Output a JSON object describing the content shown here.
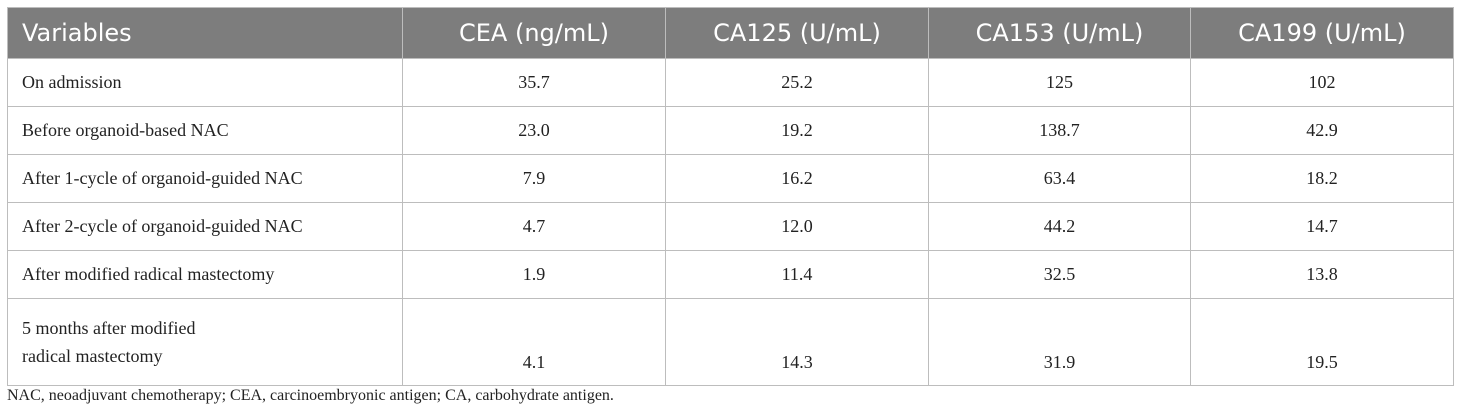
{
  "table": {
    "headers": [
      "Variables",
      "CEA (ng/mL)",
      "CA125 (U/mL)",
      "CA153 (U/mL)",
      "CA199 (U/mL)"
    ],
    "rows": [
      {
        "label": "On admission",
        "cea": "35.7",
        "ca125": "25.2",
        "ca153": "125",
        "ca199": "102"
      },
      {
        "label": "Before organoid-based NAC",
        "cea": "23.0",
        "ca125": "19.2",
        "ca153": "138.7",
        "ca199": "42.9"
      },
      {
        "label": "After 1-cycle of organoid-guided NAC",
        "cea": "7.9",
        "ca125": "16.2",
        "ca153": "63.4",
        "ca199": "18.2"
      },
      {
        "label": "After 2-cycle of organoid-guided NAC",
        "cea": "4.7",
        "ca125": "12.0",
        "ca153": "44.2",
        "ca199": "14.7"
      },
      {
        "label": "After modified radical mastectomy",
        "cea": "1.9",
        "ca125": "11.4",
        "ca153": "32.5",
        "ca199": "13.8"
      },
      {
        "label_lines": [
          "5 months after modified",
          "radical mastectomy"
        ],
        "cea": "4.1",
        "ca125": "14.3",
        "ca153": "31.9",
        "ca199": "19.5"
      }
    ]
  },
  "footnote": "NAC, neoadjuvant chemotherapy; CEA, carcinoembryonic antigen; CA, carbohydrate antigen.",
  "colors": {
    "header_bg": "#7d7d7d",
    "header_text": "#ffffff",
    "border": "#bdbdbd",
    "text": "#222222"
  }
}
